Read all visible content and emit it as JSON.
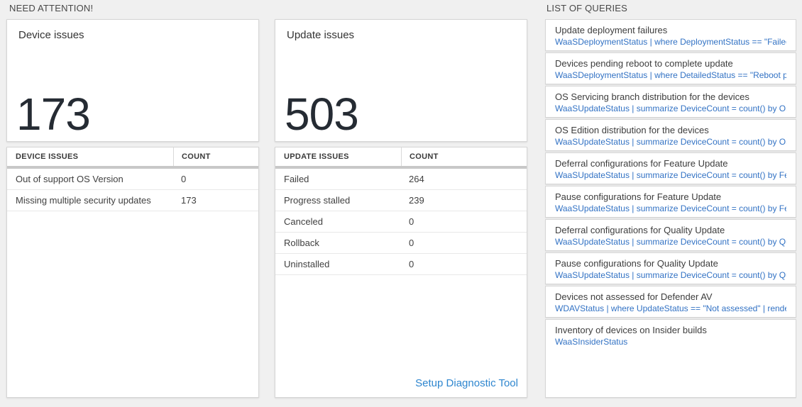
{
  "colors": {
    "page_background": "#f0f0f0",
    "card_border": "#d6d6d6",
    "big_number": "#252b33",
    "query_blue": "#3272c4",
    "link_blue": "#2e86cf",
    "thick_divider": "#c8c8c8"
  },
  "need_attention": {
    "label": "NEED ATTENTION!",
    "device_card": {
      "title": "Device issues",
      "value": "173"
    },
    "device_table": {
      "headers": {
        "label": "DEVICE ISSUES",
        "count": "COUNT"
      },
      "rows": [
        {
          "label": "Out of support OS Version",
          "count": "0"
        },
        {
          "label": "Missing multiple security updates",
          "count": "173"
        }
      ]
    },
    "update_card": {
      "title": "Update issues",
      "value": "503"
    },
    "update_table": {
      "headers": {
        "label": "UPDATE ISSUES",
        "count": "COUNT"
      },
      "rows": [
        {
          "label": "Failed",
          "count": "264"
        },
        {
          "label": "Progress stalled",
          "count": "239"
        },
        {
          "label": "Canceled",
          "count": "0"
        },
        {
          "label": "Rollback",
          "count": "0"
        },
        {
          "label": "Uninstalled",
          "count": "0"
        }
      ],
      "link": "Setup Diagnostic Tool"
    }
  },
  "list_of_queries": {
    "label": "LIST OF QUERIES",
    "items": [
      {
        "title": "Update deployment failures",
        "query": "WaaSDeploymentStatus | where DeploymentStatus == \"Failed\" |..."
      },
      {
        "title": "Devices pending reboot to complete update",
        "query": "WaaSDeploymentStatus | where DetailedStatus == \"Reboot pend..."
      },
      {
        "title": "OS Servicing branch distribution for the devices",
        "query": "WaaSUpdateStatus | summarize DeviceCount = count() by OSSer..."
      },
      {
        "title": "OS Edition distribution for the devices",
        "query": "WaaSUpdateStatus | summarize DeviceCount = count() by OSEdit..."
      },
      {
        "title": "Deferral configurations for Feature Update",
        "query": "WaaSUpdateStatus | summarize DeviceCount = count() by Featur..."
      },
      {
        "title": "Pause configurations for Feature Update",
        "query": "WaaSUpdateStatus | summarize DeviceCount = count() by Featur..."
      },
      {
        "title": "Deferral configurations for Quality Update",
        "query": "WaaSUpdateStatus | summarize DeviceCount = count() by Qualit..."
      },
      {
        "title": "Pause configurations for Quality Update",
        "query": "WaaSUpdateStatus | summarize DeviceCount = count() by Qualit..."
      },
      {
        "title": "Devices not assessed for Defender AV",
        "query": "WDAVStatus | where UpdateStatus == \"Not assessed\" | render ta..."
      },
      {
        "title": "Inventory of devices on Insider builds",
        "query": "WaaSInsiderStatus"
      }
    ]
  }
}
